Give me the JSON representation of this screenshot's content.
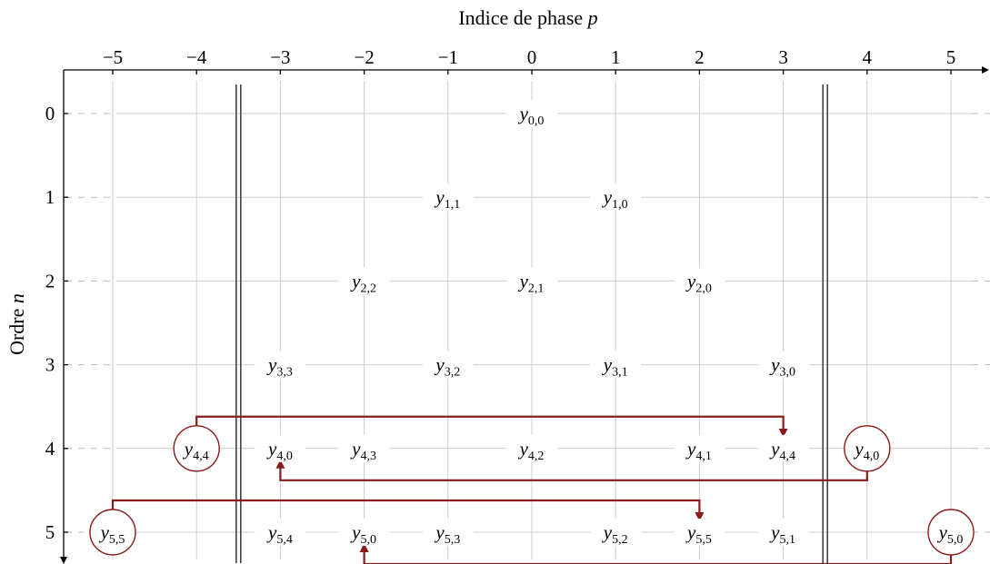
{
  "x_axis": {
    "label_text": "Indice de phase ",
    "label_var": "p",
    "ticks": [
      "−5",
      "−4",
      "−3",
      "−2",
      "−1",
      "0",
      "1",
      "2",
      "3",
      "4",
      "5"
    ]
  },
  "y_axis": {
    "label_text": "Ordre ",
    "label_var": "n",
    "ticks": [
      "0",
      "1",
      "2",
      "3",
      "4",
      "5"
    ]
  },
  "borders_at_p": [
    -3.5,
    3.5
  ],
  "colors": {
    "highlight": "#8b1a1a",
    "text": "#000000",
    "grid": "#cccccc"
  },
  "cells": [
    {
      "p": 0,
      "n": 0,
      "base": "y",
      "sub": "0,0",
      "style": "normal"
    },
    {
      "p": -1,
      "n": 1,
      "base": "y",
      "sub": "1,1",
      "style": "normal"
    },
    {
      "p": 1,
      "n": 1,
      "base": "y",
      "sub": "1,0",
      "style": "normal"
    },
    {
      "p": -2,
      "n": 2,
      "base": "y",
      "sub": "2,2",
      "style": "normal"
    },
    {
      "p": 0,
      "n": 2,
      "base": "y",
      "sub": "2,1",
      "style": "normal"
    },
    {
      "p": 2,
      "n": 2,
      "base": "y",
      "sub": "2,0",
      "style": "normal"
    },
    {
      "p": -3,
      "n": 3,
      "base": "y",
      "sub": "3,3",
      "style": "normal"
    },
    {
      "p": -1,
      "n": 3,
      "base": "y",
      "sub": "3,2",
      "style": "normal"
    },
    {
      "p": 1,
      "n": 3,
      "base": "y",
      "sub": "3,1",
      "style": "normal"
    },
    {
      "p": 3,
      "n": 3,
      "base": "y",
      "sub": "3,0",
      "style": "normal"
    },
    {
      "p": -4,
      "n": 4,
      "base": "y",
      "sub": "4,4",
      "style": "circled"
    },
    {
      "p": -3,
      "n": 4,
      "base": "y",
      "sub": "4,0",
      "style": "red"
    },
    {
      "p": -2,
      "n": 4,
      "base": "y",
      "sub": "4,3",
      "style": "normal"
    },
    {
      "p": 0,
      "n": 4,
      "base": "y",
      "sub": "4,2",
      "style": "normal"
    },
    {
      "p": 2,
      "n": 4,
      "base": "y",
      "sub": "4,1",
      "style": "normal"
    },
    {
      "p": 3,
      "n": 4,
      "base": "y",
      "sub": "4,4",
      "style": "red"
    },
    {
      "p": 4,
      "n": 4,
      "base": "y",
      "sub": "4,0",
      "style": "circled"
    },
    {
      "p": -5,
      "n": 5,
      "base": "y",
      "sub": "5,5",
      "style": "circled"
    },
    {
      "p": -3,
      "n": 5,
      "base": "y",
      "sub": "5,4",
      "style": "normal"
    },
    {
      "p": -2,
      "n": 5,
      "base": "y",
      "sub": "5,0",
      "style": "red"
    },
    {
      "p": -1,
      "n": 5,
      "base": "y",
      "sub": "5,3",
      "style": "normal"
    },
    {
      "p": 1,
      "n": 5,
      "base": "y",
      "sub": "5,2",
      "style": "normal"
    },
    {
      "p": 2,
      "n": 5,
      "base": "y",
      "sub": "5,5",
      "style": "red"
    },
    {
      "p": 3,
      "n": 5,
      "base": "y",
      "sub": "5,1",
      "style": "normal"
    },
    {
      "p": 5,
      "n": 5,
      "base": "y",
      "sub": "5,0",
      "style": "circled"
    }
  ],
  "arrows": [
    {
      "from": {
        "p": -4,
        "n": 4
      },
      "to": {
        "p": 3,
        "n": 4
      },
      "route": "over",
      "offset_n": 0.38
    },
    {
      "from": {
        "p": 4,
        "n": 4
      },
      "to": {
        "p": -3,
        "n": 4
      },
      "route": "under",
      "offset_n": 0.38
    },
    {
      "from": {
        "p": -5,
        "n": 5
      },
      "to": {
        "p": 2,
        "n": 5
      },
      "route": "over",
      "offset_n": 0.38
    },
    {
      "from": {
        "p": 5,
        "n": 5
      },
      "to": {
        "p": -2,
        "n": 5
      },
      "route": "under",
      "offset_n": 0.38
    }
  ]
}
